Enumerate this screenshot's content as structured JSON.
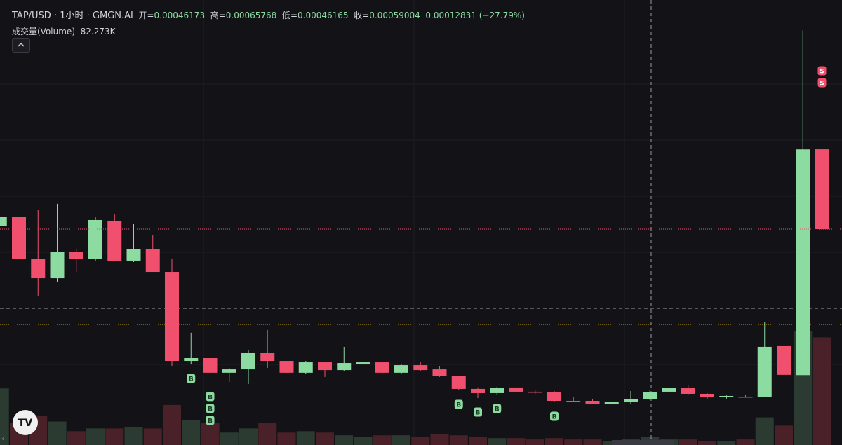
{
  "header": {
    "symbol": "TAP/USD · 1小时 · GMGN.AI",
    "open_label": "开=",
    "open": "0.00046173",
    "high_label": "高=",
    "high": "0.00065768",
    "low_label": "低=",
    "low": "0.00046165",
    "close_label": "收=",
    "close": "0.00059004",
    "change": "0.00012831",
    "change_pct": "(+27.79%)",
    "volume_label": "成交量(Volume)",
    "volume": "82.273K"
  },
  "chart_data": {
    "type": "candlestick",
    "up_color": "#8cdba0",
    "down_color": "#f0506e",
    "volume_up_color": "#2b3b31",
    "volume_down_color": "#4a2129",
    "ylim": [
      0.000422,
      0.000675
    ],
    "y2lim": [
      0,
      322.5
    ],
    "open": [
      0.0005467,
      0.0005515,
      0.0005276,
      0.0005168,
      0.0005316,
      0.0005276,
      0.0005495,
      0.0005268,
      0.0005332,
      0.0005204,
      0.0004698,
      0.0004714,
      0.0004631,
      0.000465,
      0.0004742,
      0.0004698,
      0.0004631,
      0.000469,
      0.0004646,
      0.0004682,
      0.000469,
      0.0004631,
      0.0004674,
      0.000465,
      0.0004611,
      0.0004539,
      0.0004515,
      0.0004547,
      0.0004523,
      0.0004519,
      0.0004471,
      0.0004471,
      0.0004455,
      0.0004463,
      0.0004479,
      0.0004523,
      0.0004543,
      0.0004511,
      0.0004491,
      0.0004495,
      0.0004491,
      0.0004782,
      0.00046173,
      0.0005901
    ],
    "high": [
      0.0005515,
      0.0005515,
      0.0005555,
      0.0005591,
      0.0005336,
      0.0005515,
      0.0005535,
      0.0005475,
      0.0005415,
      0.0005276,
      0.0004858,
      0.0004714,
      0.0004658,
      0.0004758,
      0.0004874,
      0.0004698,
      0.0004698,
      0.000469,
      0.0004778,
      0.0004758,
      0.000469,
      0.0004682,
      0.000469,
      0.000467,
      0.0004611,
      0.0004547,
      0.0004551,
      0.0004563,
      0.0004531,
      0.0004527,
      0.0004491,
      0.0004479,
      0.0004467,
      0.0004527,
      0.0004531,
      0.0004555,
      0.0004559,
      0.0004515,
      0.0004503,
      0.0004503,
      0.0004917,
      0.0004782,
      0.00065768,
      0.00062
    ],
    "low": [
      0.0005467,
      0.0005276,
      0.0005069,
      0.0005148,
      0.0005204,
      0.0005268,
      0.0005268,
      0.000526,
      0.0005204,
      0.000467,
      0.0004678,
      0.0004575,
      0.0004579,
      0.0004567,
      0.0004658,
      0.0004631,
      0.0004623,
      0.0004607,
      0.0004639,
      0.0004674,
      0.0004627,
      0.0004627,
      0.0004639,
      0.0004607,
      0.0004531,
      0.0004487,
      0.0004507,
      0.0004519,
      0.0004511,
      0.0004463,
      0.0004463,
      0.0004451,
      0.0004451,
      0.0004455,
      0.0004475,
      0.0004515,
      0.0004507,
      0.0004483,
      0.0004479,
      0.0004491,
      0.0004491,
      0.0004619,
      0.00046165,
      0.0005117
    ],
    "close": [
      0.0005515,
      0.0005276,
      0.0005168,
      0.0005316,
      0.0005276,
      0.0005499,
      0.0005268,
      0.0005332,
      0.0005204,
      0.0004698,
      0.0004714,
      0.0004631,
      0.000465,
      0.0004742,
      0.0004698,
      0.0004631,
      0.000469,
      0.0004646,
      0.0004686,
      0.000469,
      0.0004631,
      0.0004674,
      0.0004646,
      0.0004611,
      0.0004539,
      0.0004515,
      0.0004543,
      0.0004523,
      0.0004519,
      0.0004471,
      0.0004467,
      0.0004451,
      0.0004463,
      0.0004479,
      0.0004519,
      0.0004543,
      0.0004511,
      0.0004491,
      0.0004499,
      0.0004491,
      0.0004778,
      0.0004619,
      0.00059004,
      0.0005447
    ],
    "volume": [
      41,
      16,
      21,
      17,
      10,
      12,
      12,
      13,
      12,
      29,
      18,
      16,
      9,
      12,
      16,
      9,
      10,
      9,
      7,
      6,
      7,
      7,
      6,
      8,
      7,
      6,
      5,
      5,
      4,
      5,
      4,
      4,
      3,
      4,
      6,
      4,
      4,
      3,
      3,
      4,
      20,
      14,
      82.273,
      78
    ],
    "trades": [
      [],
      [],
      [],
      [],
      [],
      [],
      [],
      [],
      [],
      [],
      [
        "B"
      ],
      [
        "B",
        "B",
        "B"
      ],
      [],
      [],
      [],
      [],
      [],
      [],
      [],
      [],
      [],
      [],
      [],
      [],
      [
        "B"
      ],
      [
        "B"
      ],
      [
        "B"
      ],
      [],
      [],
      [
        "B"
      ],
      [],
      [],
      [],
      [],
      [],
      [],
      [],
      [],
      [],
      [],
      [],
      [],
      [],
      [
        "S",
        "S"
      ]
    ]
  }
}
